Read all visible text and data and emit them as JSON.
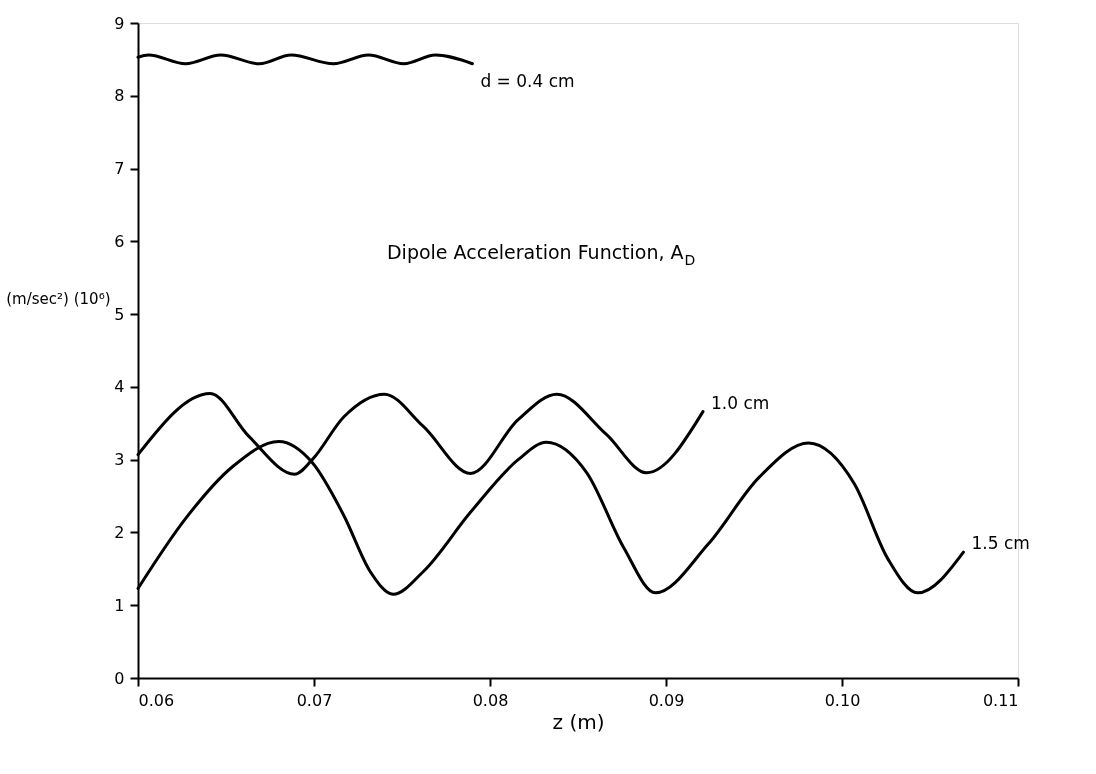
{
  "chart_data": {
    "type": "line",
    "xlabel": "z (m)",
    "ylabel": "(m/sec²) (10⁶)",
    "annotations": [
      "Dipole Acceleration Function, A$_{D}$"
    ],
    "xlim": [
      0.06,
      0.11
    ],
    "xticks": [
      0.06,
      0.07,
      0.08,
      0.09,
      {
        "value": 0.1,
        "label": "0.10"
      },
      0.11
    ],
    "ylim": [
      0,
      9
    ],
    "yticks": [
      0,
      1,
      2,
      3,
      4,
      5,
      6,
      7,
      8,
      9
    ],
    "grid": false,
    "marker": "none",
    "line_style": "solid",
    "series": [
      {
        "name": "d = 0.4 cm",
        "color": "#000000",
        "x": [
          0.06,
          0.0606,
          0.0627,
          0.0647,
          0.0669,
          0.0687,
          0.0711,
          0.0731,
          0.0751,
          0.0769,
          0.079
        ],
        "values": [
          8.53,
          8.56,
          8.44,
          8.56,
          8.44,
          8.56,
          8.44,
          8.56,
          8.44,
          8.56,
          8.44
        ]
      },
      {
        "name": "1.0 cm",
        "color": "#000000",
        "x": [
          0.06,
          0.0641,
          0.0663,
          0.0689,
          0.0699,
          0.0717,
          0.074,
          0.0762,
          0.0789,
          0.0816,
          0.0838,
          0.0866,
          0.0889,
          0.0921
        ],
        "values": [
          3.07,
          3.91,
          3.32,
          2.8,
          3.0,
          3.59,
          3.9,
          3.46,
          2.81,
          3.55,
          3.9,
          3.35,
          2.82,
          3.66
        ]
      },
      {
        "name": "1.5 cm",
        "color": "#000000",
        "x": [
          0.06,
          0.0627,
          0.0654,
          0.068,
          0.0699,
          0.0717,
          0.0732,
          0.0745,
          0.0762,
          0.0789,
          0.0816,
          0.0832,
          0.0855,
          0.0876,
          0.0894,
          0.0924,
          0.0953,
          0.0981,
          0.1007,
          0.1026,
          0.1043,
          0.1069
        ],
        "values": [
          1.23,
          2.19,
          2.91,
          3.25,
          2.96,
          2.23,
          1.46,
          1.15,
          1.46,
          2.28,
          3.0,
          3.24,
          2.82,
          1.79,
          1.17,
          1.84,
          2.76,
          3.23,
          2.67,
          1.64,
          1.17,
          1.73
        ]
      }
    ]
  }
}
